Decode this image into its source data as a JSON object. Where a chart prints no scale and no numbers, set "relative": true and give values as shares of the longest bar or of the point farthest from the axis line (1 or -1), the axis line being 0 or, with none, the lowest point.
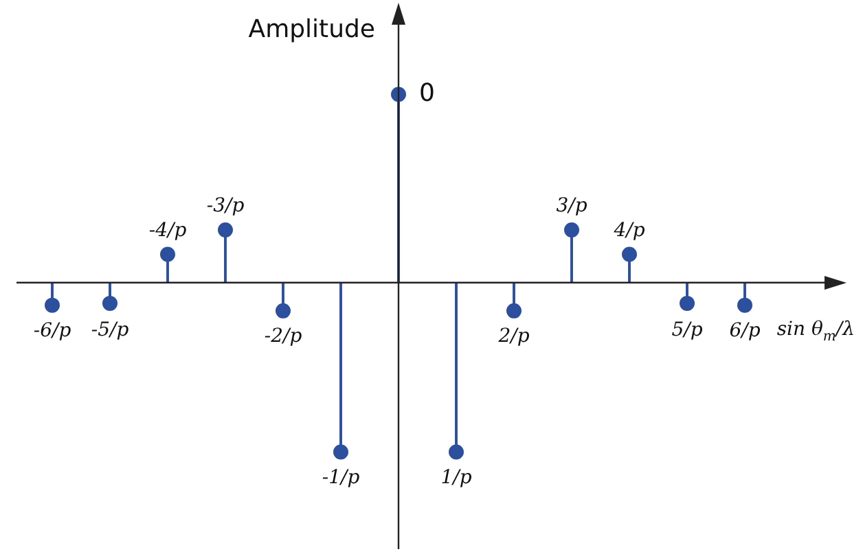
{
  "chart_data": {
    "type": "lollipop",
    "relative": true,
    "ylabel": "Amplitude",
    "xlabel": "sin θ$_{m}$/λ",
    "categories": [
      "-6/p",
      "-5/p",
      "-4/p",
      "-3/p",
      "-2/p",
      "-1/p",
      "0",
      "1/p",
      "2/p",
      "3/p",
      "4/p",
      "5/p",
      "6/p"
    ],
    "values": [
      -0.12,
      -0.11,
      0.15,
      0.28,
      -0.15,
      -0.9,
      1,
      -0.9,
      -0.15,
      0.28,
      0.15,
      -0.11,
      -0.12
    ],
    "color": "#2c4f9e",
    "marker": "circle",
    "legend": false
  }
}
